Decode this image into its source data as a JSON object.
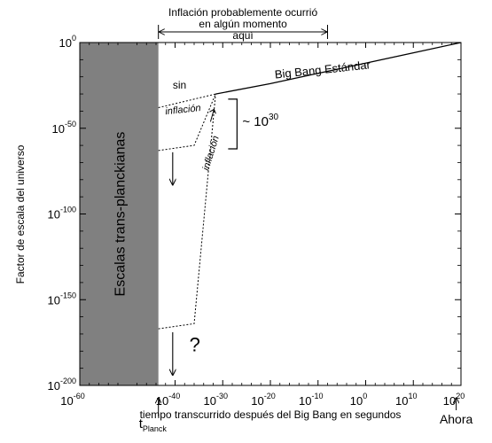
{
  "chart_data": {
    "type": "line",
    "x_scale": "log",
    "y_scale": "log",
    "xlim": [
      -60,
      20
    ],
    "ylim": [
      -200,
      0
    ],
    "xlabel": "tiempo transcurrido después del Big Bang en segundos",
    "ylabel": "Factor de escala del universo",
    "x_ticks": [
      {
        "base": "10",
        "exp": "-60"
      },
      {
        "base": "10",
        "exp": "-40"
      },
      {
        "base": "10",
        "exp": "-30"
      },
      {
        "base": "10",
        "exp": "-20"
      },
      {
        "base": "10",
        "exp": "-10"
      },
      {
        "base": "10",
        "exp": "0"
      },
      {
        "base": "10",
        "exp": "10"
      },
      {
        "base": "10",
        "exp": "20"
      }
    ],
    "y_ticks": [
      {
        "base": "10",
        "exp": "0"
      },
      {
        "base": "10",
        "exp": "-50"
      },
      {
        "base": "10",
        "exp": "-100"
      },
      {
        "base": "10",
        "exp": "-150"
      },
      {
        "base": "10",
        "exp": "-200"
      }
    ],
    "shaded_region": {
      "label": "Escalas trans-planckianas",
      "x_range": [
        -60,
        -43.5
      ]
    },
    "series": [
      {
        "name": "Big Bang Estándar",
        "style": "solid",
        "points": [
          [
            -31.5,
            -30
          ],
          [
            -20,
            -24
          ],
          [
            -10,
            -18
          ],
          [
            0,
            -12
          ],
          [
            10,
            -6
          ],
          [
            20,
            0
          ]
        ]
      },
      {
        "name": "sin inflación",
        "style": "dotted",
        "points": [
          [
            -43.5,
            -38
          ],
          [
            -31.5,
            -30
          ]
        ]
      },
      {
        "name": "inflación",
        "style": "dotted",
        "points": [
          [
            -43.5,
            -63
          ],
          [
            -36,
            -60
          ],
          [
            -31.5,
            -30
          ]
        ]
      },
      {
        "name": "inflación",
        "style": "dotted",
        "points": [
          [
            -43.5,
            -167
          ],
          [
            -36,
            -164
          ],
          [
            -31.5,
            -30
          ]
        ]
      }
    ],
    "annotations": {
      "top_text_line1": "Inflación probablemente ocurrió",
      "top_text_line2": "en algún momento",
      "top_text_line3": "aquí",
      "top_range": [
        -43.5,
        -8
      ],
      "sin_label": "sin",
      "inflacion_label_1": "inflación",
      "inflacion_label_2": "inflación",
      "bbe_label": "Big Bang Estándar",
      "bracket_label": "~ 10",
      "bracket_exp": "30",
      "bracket_range": [
        -60,
        -30
      ],
      "question": "?",
      "tplanck_main": "t",
      "tplanck_sub": "Planck",
      "ahora": "Ahora",
      "ahora_x": 19
    },
    "grid": false
  }
}
